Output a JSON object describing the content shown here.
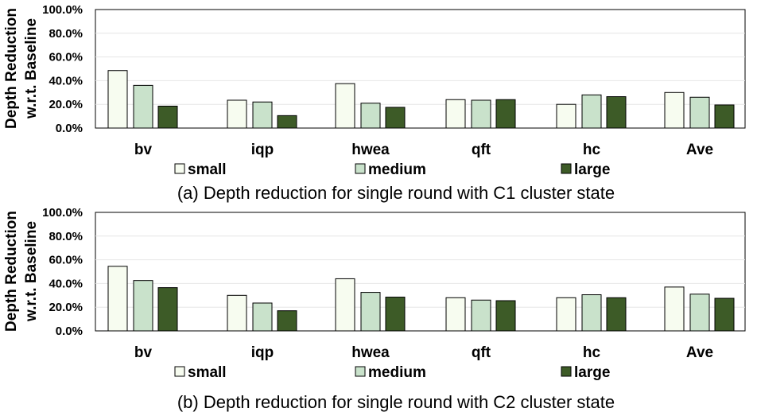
{
  "chart_data": [
    {
      "type": "bar",
      "title": "(a) Depth reduction for single round with C1 cluster state",
      "ylabel": [
        "Depth Reduction",
        "w.r.t. Baseline"
      ],
      "xlabel": "",
      "ylim": [
        0,
        100
      ],
      "yticks": [
        "0.0%",
        "20.0%",
        "40.0%",
        "60.0%",
        "80.0%",
        "100.0%"
      ],
      "categories": [
        "bv",
        "iqp",
        "hwea",
        "qft",
        "hc",
        "Ave"
      ],
      "grid": true,
      "legend": "bottom",
      "series": [
        {
          "name": "small",
          "color": "#f7fcf0",
          "values": [
            48.5,
            23.5,
            37.5,
            24.0,
            20.0,
            30.0
          ]
        },
        {
          "name": "medium",
          "color": "#c9e2cb",
          "values": [
            36.0,
            22.0,
            21.0,
            23.5,
            28.0,
            26.0
          ]
        },
        {
          "name": "large",
          "color": "#3d5b27",
          "values": [
            18.5,
            10.5,
            17.5,
            24.0,
            26.5,
            19.5
          ]
        }
      ]
    },
    {
      "type": "bar",
      "title": "(b) Depth reduction for single round with C2 cluster state",
      "ylabel": [
        "Depth Reduction",
        "w.r.t. Baseline"
      ],
      "xlabel": "",
      "ylim": [
        0,
        100
      ],
      "yticks": [
        "0.0%",
        "20.0%",
        "40.0%",
        "60.0%",
        "80.0%",
        "100.0%"
      ],
      "categories": [
        "bv",
        "iqp",
        "hwea",
        "qft",
        "hc",
        "Ave"
      ],
      "grid": true,
      "legend": "bottom",
      "series": [
        {
          "name": "small",
          "color": "#f7fcf0",
          "values": [
            54.5,
            30.0,
            44.0,
            28.0,
            28.0,
            37.0
          ]
        },
        {
          "name": "medium",
          "color": "#c9e2cb",
          "values": [
            42.5,
            23.5,
            32.5,
            26.0,
            30.5,
            31.0
          ]
        },
        {
          "name": "large",
          "color": "#3d5b27",
          "values": [
            36.5,
            17.0,
            28.5,
            25.5,
            28.0,
            27.5
          ]
        }
      ]
    }
  ]
}
